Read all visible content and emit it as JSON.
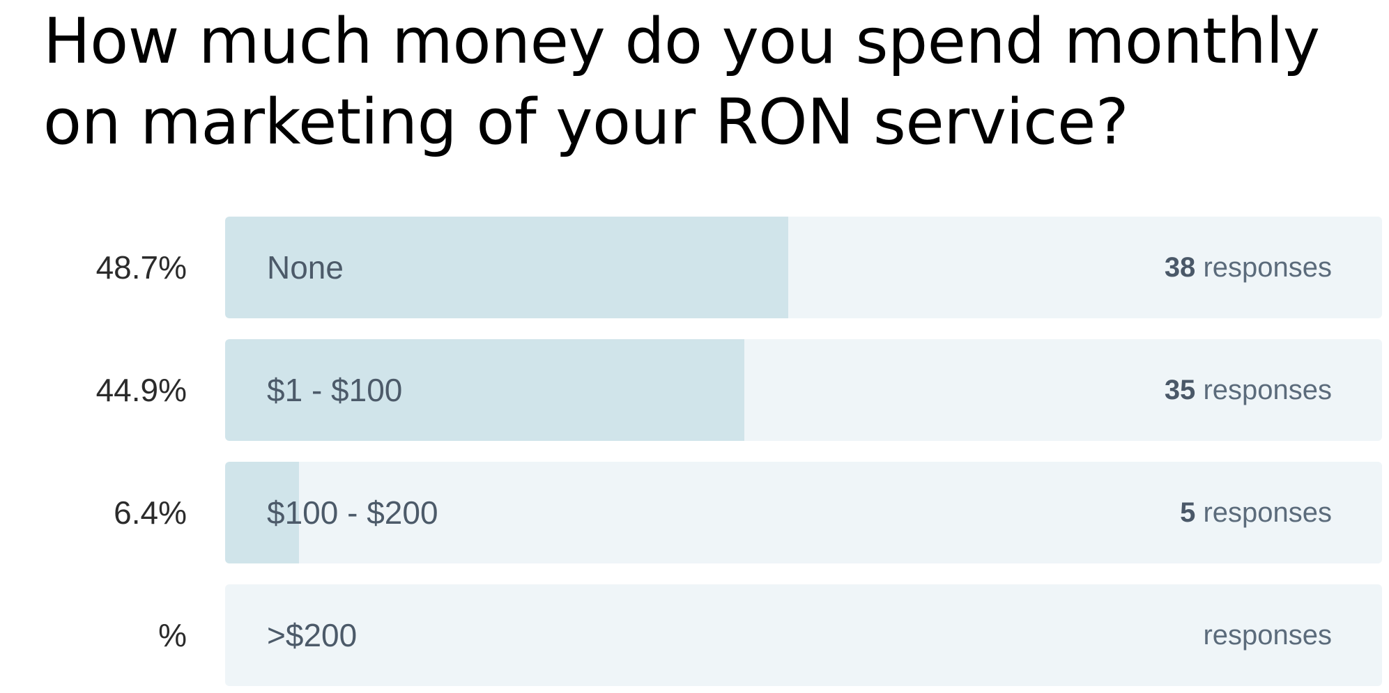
{
  "question": {
    "title": "How much money do you spend monthly on marketing of your RON service?"
  },
  "colors": {
    "bar_fill": "#d0e4ea",
    "bar_track": "#eff5f8",
    "label_text": "#4c5a69"
  },
  "chart_data": {
    "type": "bar",
    "orientation": "horizontal",
    "title": "How much money do you spend monthly on marketing of your RON service?",
    "categories": [
      "None",
      "$1 - $100",
      "$100 - $200",
      ">$200"
    ],
    "percent_labels": [
      "48.7%",
      "44.9%",
      "6.4%",
      "%"
    ],
    "values": [
      48.7,
      44.9,
      6.4,
      null
    ],
    "counts": [
      "38",
      "35",
      "5",
      ""
    ],
    "count_suffix": "responses",
    "xlim": [
      0,
      100
    ]
  }
}
